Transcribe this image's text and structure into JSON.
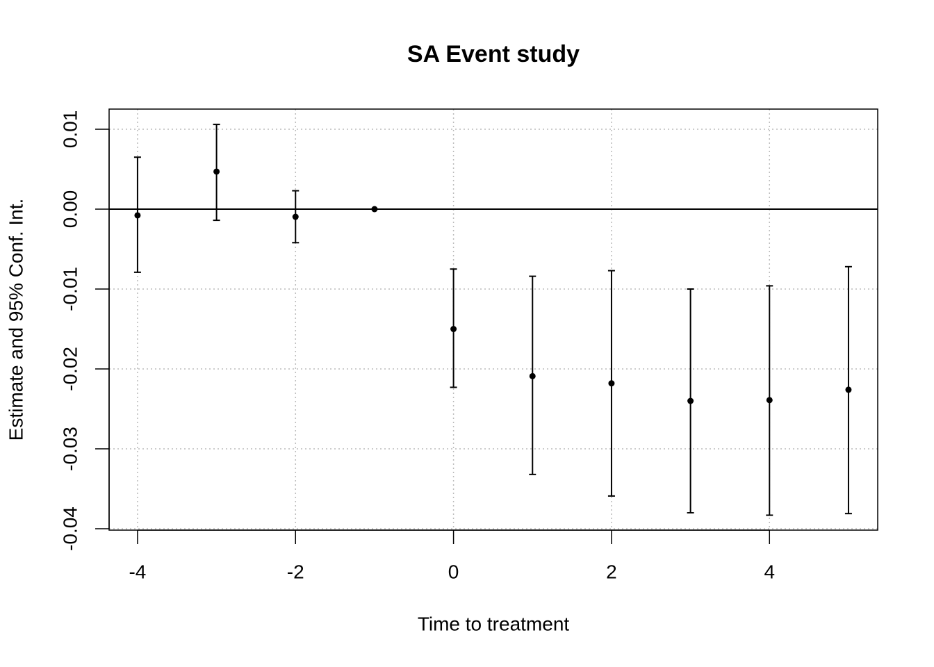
{
  "chart_data": {
    "type": "errorbar",
    "title": "SA Event study",
    "x_label": "Time to treatment",
    "y_label": "Estimate and 95% Conf. Int.",
    "x": [
      -4,
      -3,
      -2,
      -1,
      0,
      1,
      2,
      3,
      4,
      5
    ],
    "series": [
      {
        "color": "#000000",
        "values": [
          -0.00078,
          0.0047,
          -0.00096,
          0,
          -0.015,
          -0.0209,
          -0.0218,
          -0.024,
          -0.0239,
          -0.0226
        ],
        "ci_low": [
          -0.0079,
          -0.0014,
          -0.0042,
          0,
          -0.0223,
          -0.0332,
          -0.0359,
          -0.038,
          -0.0383,
          -0.0381
        ],
        "ci_high": [
          0.0065,
          0.0106,
          0.0023,
          0,
          -0.0075,
          -0.0084,
          -0.0077,
          -0.01,
          -0.0096,
          -0.0072
        ]
      }
    ],
    "xlim": [
      -4.36,
      5.37
    ],
    "ylim": [
      -0.04017,
      0.01252
    ],
    "xticks": [
      -4,
      -2,
      0,
      2,
      4
    ],
    "yticks": [
      -0.04,
      -0.03,
      -0.02,
      -0.01,
      {
        "value": 0,
        "label": "0.00"
      },
      0.01
    ],
    "grid": true,
    "reference_line": 0
  }
}
